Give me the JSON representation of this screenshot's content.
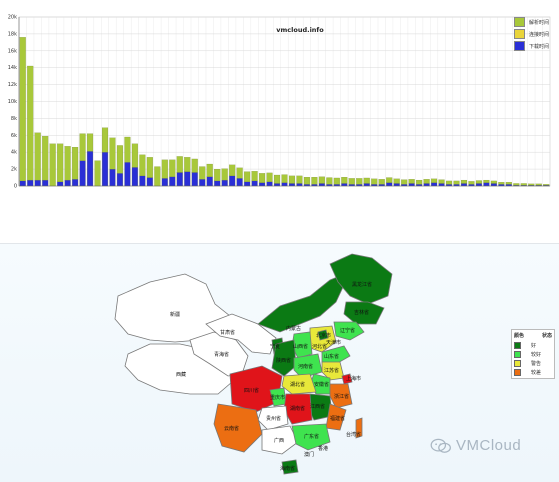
{
  "chart_data": {
    "type": "bar",
    "title": "vmcloud.info",
    "stacked": true,
    "ylim": [
      0,
      20000
    ],
    "yticks": [
      "0",
      "2k",
      "4k",
      "6k",
      "8k",
      "10k",
      "12k",
      "14k",
      "16k",
      "18k",
      "20k"
    ],
    "grid": true,
    "legend_position": "top-right",
    "series": [
      {
        "name": "解析时间",
        "color": "#a8c83a",
        "values": [
          17000,
          13500,
          5600,
          5200,
          5000,
          4500,
          4000,
          3800,
          3200,
          2100,
          3000,
          2900,
          3700,
          3300,
          3000,
          2800,
          2500,
          2400,
          2300,
          2200,
          2000,
          1900,
          1700,
          1600,
          1500,
          1500,
          1400,
          1350,
          1300,
          1250,
          1200,
          1150,
          1100,
          1050,
          1000,
          950,
          900,
          900,
          850,
          850,
          800,
          800,
          750,
          750,
          700,
          700,
          650,
          650,
          600,
          600,
          550,
          550,
          500,
          500,
          500,
          450,
          450,
          400,
          400,
          400,
          350,
          350,
          300,
          300,
          250,
          250,
          200,
          200,
          150,
          150,
          100
        ]
      },
      {
        "name": "连接时间",
        "color": "#e9d43a",
        "values": [
          0,
          0,
          0,
          0,
          0,
          0,
          0,
          0,
          0,
          0,
          0,
          0,
          0,
          0,
          0,
          0,
          0,
          0,
          0,
          0,
          0,
          0,
          0,
          0,
          0,
          0,
          0,
          0,
          0,
          0,
          0,
          0,
          0,
          0,
          0,
          0,
          0,
          0,
          0,
          0,
          0,
          0,
          0,
          0,
          0,
          0,
          0,
          0,
          0,
          0,
          0,
          0,
          0,
          0,
          0,
          0,
          0,
          0,
          0,
          0,
          0,
          0,
          0,
          0,
          0,
          0,
          0,
          0,
          0,
          0,
          0
        ]
      },
      {
        "name": "下载时间",
        "color": "#2a2fd6",
        "values": [
          600,
          700,
          700,
          700,
          0,
          500,
          700,
          800,
          3000,
          4100,
          0,
          4000,
          2000,
          1500,
          2800,
          2200,
          1200,
          1000,
          0,
          900,
          1100,
          1600,
          1700,
          1600,
          800,
          1100,
          600,
          700,
          1200,
          900,
          500,
          600,
          400,
          500,
          300,
          400,
          300,
          300,
          200,
          200,
          300,
          200,
          200,
          300,
          200,
          200,
          300,
          200,
          200,
          400,
          300,
          200,
          300,
          200,
          300,
          400,
          300,
          200,
          200,
          300,
          200,
          300,
          400,
          300,
          200,
          200,
          100,
          100,
          100,
          100,
          100
        ]
      }
    ]
  },
  "map": {
    "provinces": [
      "新疆",
      "西藏",
      "青海省",
      "甘肃省",
      "内蒙古",
      "黑龙江省",
      "吉林省",
      "辽宁省",
      "北京市",
      "天津市",
      "河北省",
      "山西省",
      "山东省",
      "河南省",
      "陕西省",
      "宁夏",
      "四川省",
      "重庆市",
      "湖北省",
      "安徽省",
      "江苏省",
      "上海市",
      "浙江省",
      "江西省",
      "湖南省",
      "贵州省",
      "云南省",
      "广西",
      "广东省",
      "福建省",
      "台湾省",
      "海南省",
      "香港",
      "澳门"
    ],
    "legend_header": {
      "color": "颜色",
      "status": "状态"
    },
    "legend": [
      {
        "label": "好",
        "color": "#0b7a14"
      },
      {
        "label": "较好",
        "color": "#3fe34f"
      },
      {
        "label": "警告",
        "color": "#e8e83a"
      },
      {
        "label": "较差",
        "color": "#ec6e12"
      }
    ],
    "colors": {
      "white": "#ffffff",
      "red": "#e0141a"
    }
  },
  "watermark": "VMCloud"
}
